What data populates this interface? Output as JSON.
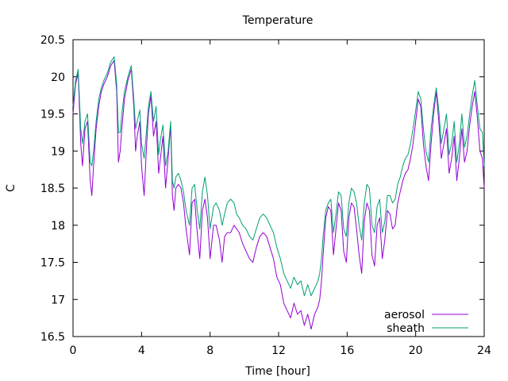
{
  "chart_data": {
    "type": "line",
    "title": "Temperature",
    "xlabel": "Time [hour]",
    "ylabel": "C",
    "xlim": [
      0,
      24
    ],
    "ylim": [
      16.5,
      20.5
    ],
    "xticks": [
      0,
      4,
      8,
      12,
      16,
      20,
      24
    ],
    "yticks": [
      16.5,
      17,
      17.5,
      18,
      18.5,
      19,
      19.5,
      20,
      20.5
    ],
    "grid": false,
    "legend_position": "bottom-right",
    "series": [
      {
        "name": "aerosol",
        "color": "#9400d3",
        "x": [
          0,
          0.15,
          0.3,
          0.45,
          0.55,
          0.7,
          0.85,
          1.0,
          1.1,
          1.2,
          1.35,
          1.5,
          1.65,
          1.8,
          2.0,
          2.2,
          2.4,
          2.55,
          2.65,
          2.75,
          2.85,
          3.0,
          3.2,
          3.4,
          3.55,
          3.65,
          3.75,
          3.9,
          4.0,
          4.15,
          4.3,
          4.4,
          4.55,
          4.7,
          4.85,
          5.0,
          5.1,
          5.25,
          5.4,
          5.55,
          5.7,
          5.8,
          5.9,
          6.0,
          6.15,
          6.3,
          6.45,
          6.6,
          6.8,
          6.95,
          7.1,
          7.25,
          7.4,
          7.55,
          7.7,
          7.85,
          8.0,
          8.2,
          8.35,
          8.55,
          8.7,
          8.85,
          9.0,
          9.2,
          9.4,
          9.55,
          9.7,
          9.9,
          10.1,
          10.3,
          10.5,
          10.7,
          10.9,
          11.1,
          11.3,
          11.5,
          11.7,
          11.9,
          12.1,
          12.3,
          12.5,
          12.7,
          12.9,
          13.1,
          13.3,
          13.5,
          13.7,
          13.9,
          14.1,
          14.2,
          14.3,
          14.4,
          14.5,
          14.6,
          14.75,
          14.9,
          15.05,
          15.2,
          15.35,
          15.5,
          15.65,
          15.8,
          15.95,
          16.1,
          16.25,
          16.4,
          16.55,
          16.7,
          16.85,
          17.0,
          17.15,
          17.3,
          17.45,
          17.6,
          17.75,
          17.9,
          18.05,
          18.2,
          18.35,
          18.5,
          18.65,
          18.8,
          18.95,
          19.1,
          19.25,
          19.4,
          19.55,
          19.7,
          19.85,
          20.0,
          20.15,
          20.3,
          20.45,
          20.6,
          20.75,
          20.9,
          21.05,
          21.2,
          21.35,
          21.5,
          21.65,
          21.8,
          21.95,
          22.1,
          22.25,
          22.4,
          22.55,
          22.7,
          22.85,
          23.0,
          23.15,
          23.3,
          23.45,
          23.6,
          23.75,
          23.9,
          24.0
        ],
        "y": [
          19.5,
          19.9,
          20.05,
          19.1,
          18.8,
          19.3,
          19.4,
          18.6,
          18.4,
          18.8,
          19.3,
          19.6,
          19.8,
          19.9,
          20.0,
          20.15,
          20.22,
          19.8,
          18.85,
          19.0,
          19.3,
          19.7,
          19.95,
          20.1,
          19.6,
          19.0,
          19.2,
          19.4,
          18.8,
          18.4,
          19.1,
          19.5,
          19.75,
          19.2,
          19.4,
          18.7,
          18.9,
          19.2,
          18.5,
          18.9,
          19.35,
          18.4,
          18.2,
          18.5,
          18.55,
          18.5,
          18.3,
          17.95,
          17.6,
          18.3,
          18.35,
          17.9,
          17.55,
          18.2,
          18.35,
          18.1,
          17.55,
          18.0,
          18.0,
          17.8,
          17.5,
          17.85,
          17.9,
          17.9,
          18.0,
          17.95,
          17.9,
          17.75,
          17.65,
          17.55,
          17.5,
          17.7,
          17.85,
          17.9,
          17.85,
          17.7,
          17.55,
          17.3,
          17.2,
          16.95,
          16.85,
          16.75,
          16.95,
          16.8,
          16.85,
          16.65,
          16.8,
          16.6,
          16.8,
          16.85,
          16.9,
          17.0,
          17.25,
          17.6,
          18.1,
          18.25,
          18.2,
          17.6,
          17.95,
          18.3,
          18.2,
          17.65,
          17.5,
          18.1,
          18.3,
          18.25,
          17.95,
          17.6,
          17.35,
          18.05,
          18.3,
          18.2,
          17.6,
          17.45,
          18.0,
          18.1,
          17.55,
          17.8,
          18.2,
          18.15,
          17.95,
          18.0,
          18.3,
          18.45,
          18.6,
          18.7,
          18.75,
          18.9,
          19.1,
          19.4,
          19.7,
          19.6,
          19.1,
          18.8,
          18.6,
          19.1,
          19.5,
          19.8,
          19.4,
          18.9,
          19.1,
          19.3,
          18.7,
          18.9,
          19.2,
          18.6,
          18.9,
          19.3,
          18.85,
          19.0,
          19.35,
          19.6,
          19.8,
          19.45,
          19.0,
          18.9,
          18.5
        ]
      },
      {
        "name": "sheath",
        "color": "#009e73",
        "x": [
          0,
          0.15,
          0.3,
          0.45,
          0.55,
          0.7,
          0.85,
          1.0,
          1.1,
          1.2,
          1.35,
          1.5,
          1.65,
          1.8,
          2.0,
          2.2,
          2.4,
          2.55,
          2.65,
          2.75,
          2.85,
          3.0,
          3.2,
          3.4,
          3.55,
          3.65,
          3.75,
          3.9,
          4.0,
          4.15,
          4.3,
          4.4,
          4.55,
          4.7,
          4.85,
          5.0,
          5.1,
          5.25,
          5.4,
          5.55,
          5.7,
          5.8,
          5.9,
          6.0,
          6.15,
          6.3,
          6.45,
          6.6,
          6.8,
          6.95,
          7.1,
          7.25,
          7.4,
          7.55,
          7.7,
          7.85,
          8.0,
          8.2,
          8.35,
          8.55,
          8.7,
          8.85,
          9.0,
          9.2,
          9.4,
          9.55,
          9.7,
          9.9,
          10.1,
          10.3,
          10.5,
          10.7,
          10.9,
          11.1,
          11.3,
          11.5,
          11.7,
          11.9,
          12.1,
          12.3,
          12.5,
          12.7,
          12.9,
          13.1,
          13.3,
          13.5,
          13.7,
          13.9,
          14.1,
          14.2,
          14.3,
          14.4,
          14.5,
          14.6,
          14.75,
          14.9,
          15.05,
          15.2,
          15.35,
          15.5,
          15.65,
          15.8,
          15.95,
          16.1,
          16.25,
          16.4,
          16.55,
          16.7,
          16.85,
          17.0,
          17.15,
          17.3,
          17.45,
          17.6,
          17.75,
          17.9,
          18.05,
          18.2,
          18.35,
          18.5,
          18.65,
          18.8,
          18.95,
          19.1,
          19.25,
          19.4,
          19.55,
          19.7,
          19.85,
          20.0,
          20.15,
          20.3,
          20.45,
          20.6,
          20.75,
          20.9,
          21.05,
          21.2,
          21.35,
          21.5,
          21.65,
          21.8,
          21.95,
          22.1,
          22.25,
          22.4,
          22.55,
          22.7,
          22.85,
          23.0,
          23.15,
          23.3,
          23.45,
          23.6,
          23.75,
          23.9,
          24.0
        ],
        "y": [
          19.6,
          19.95,
          20.1,
          19.3,
          19.1,
          19.4,
          19.5,
          18.85,
          18.8,
          19.0,
          19.4,
          19.7,
          19.85,
          19.95,
          20.05,
          20.2,
          20.27,
          19.9,
          19.25,
          19.25,
          19.5,
          19.8,
          20.0,
          20.15,
          19.7,
          19.3,
          19.4,
          19.55,
          19.1,
          18.9,
          19.3,
          19.6,
          19.8,
          19.4,
          19.6,
          18.95,
          19.15,
          19.35,
          18.8,
          19.0,
          19.4,
          18.6,
          18.5,
          18.65,
          18.7,
          18.6,
          18.45,
          18.2,
          18.0,
          18.5,
          18.55,
          18.2,
          17.95,
          18.45,
          18.65,
          18.4,
          17.95,
          18.25,
          18.3,
          18.2,
          18.0,
          18.15,
          18.3,
          18.35,
          18.3,
          18.15,
          18.1,
          18.0,
          17.95,
          17.85,
          17.8,
          17.95,
          18.1,
          18.15,
          18.1,
          18.0,
          17.9,
          17.7,
          17.55,
          17.35,
          17.25,
          17.15,
          17.3,
          17.2,
          17.25,
          17.05,
          17.2,
          17.05,
          17.15,
          17.2,
          17.25,
          17.35,
          17.55,
          17.85,
          18.2,
          18.3,
          18.35,
          17.9,
          18.15,
          18.45,
          18.4,
          17.95,
          17.85,
          18.3,
          18.5,
          18.45,
          18.3,
          18.0,
          17.8,
          18.3,
          18.55,
          18.5,
          18.0,
          17.9,
          18.25,
          18.35,
          17.9,
          18.05,
          18.4,
          18.4,
          18.3,
          18.35,
          18.55,
          18.65,
          18.8,
          18.9,
          18.95,
          19.1,
          19.3,
          19.55,
          19.8,
          19.7,
          19.3,
          19.0,
          18.85,
          19.3,
          19.6,
          19.85,
          19.55,
          19.1,
          19.3,
          19.5,
          18.95,
          19.1,
          19.4,
          18.85,
          19.1,
          19.5,
          19.05,
          19.2,
          19.5,
          19.75,
          19.95,
          19.6,
          19.3,
          19.25,
          18.8
        ]
      }
    ]
  }
}
